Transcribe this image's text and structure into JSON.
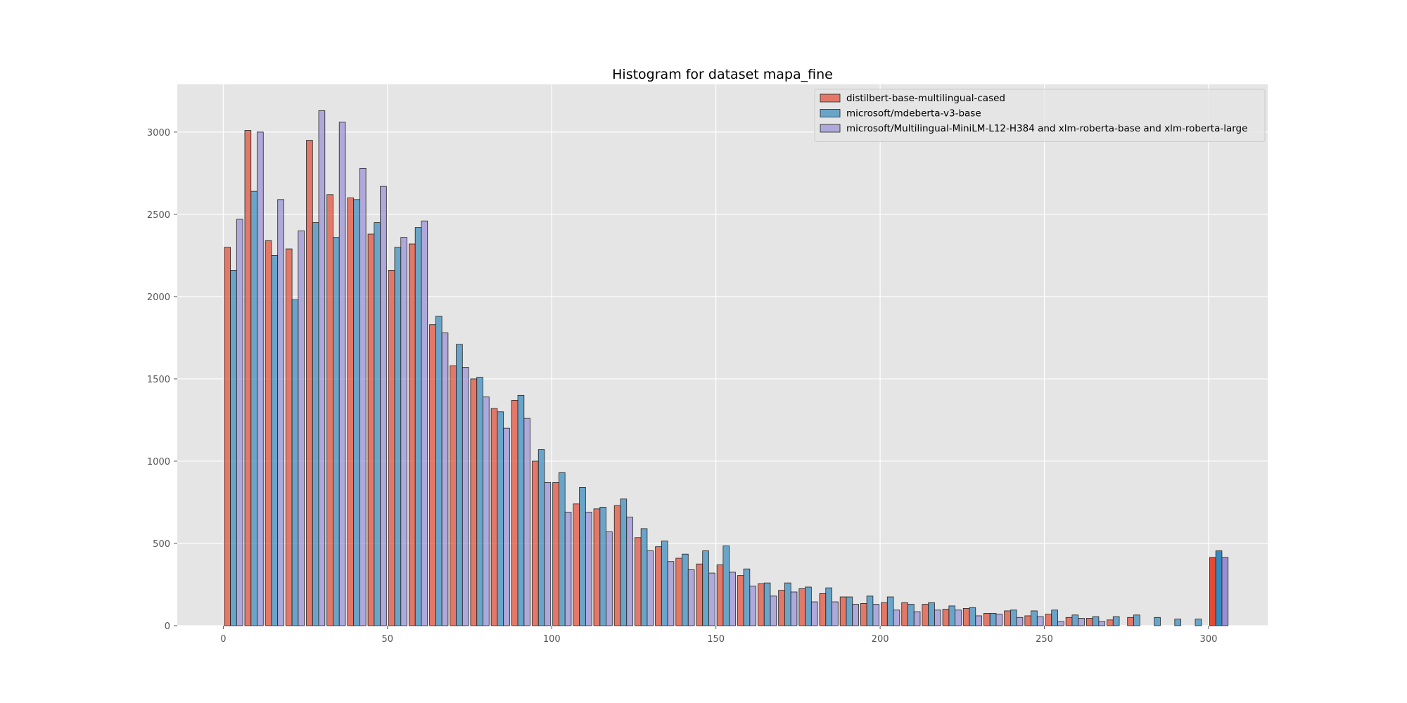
{
  "chart_data": {
    "type": "bar",
    "title": "Histogram for dataset mapa_fine",
    "xlabel": "",
    "ylabel": "",
    "xlim": [
      -14,
      318
    ],
    "ylim": [
      0,
      3290
    ],
    "xticks": [
      0,
      50,
      100,
      150,
      200,
      250,
      300
    ],
    "yticks": [
      0,
      500,
      1000,
      1500,
      2000,
      2500,
      3000
    ],
    "grid": true,
    "legend_position": "top-right",
    "bin_width": 6.25,
    "bin_starts": [
      0,
      6.25,
      12.5,
      18.75,
      25,
      31.25,
      37.5,
      43.75,
      50,
      56.25,
      62.5,
      68.75,
      75,
      81.25,
      87.5,
      93.75,
      100,
      106.25,
      112.5,
      118.75,
      125,
      131.25,
      137.5,
      143.75,
      150,
      156.25,
      162.5,
      168.75,
      175,
      181.25,
      187.5,
      193.75,
      200,
      206.25,
      212.5,
      218.75,
      225,
      231.25,
      237.5,
      243.75,
      250,
      256.25,
      262.5,
      268.75,
      275,
      281.25,
      287.5,
      293.75,
      300
    ],
    "series": [
      {
        "name": "distilbert-base-multilingual-cased",
        "color": "#E24A33",
        "values": [
          2300,
          3010,
          2340,
          2290,
          2950,
          2620,
          2600,
          2380,
          2160,
          2320,
          1830,
          1580,
          1500,
          1320,
          1370,
          1000,
          870,
          740,
          710,
          730,
          535,
          480,
          410,
          375,
          370,
          305,
          255,
          215,
          225,
          195,
          175,
          135,
          140,
          140,
          130,
          100,
          105,
          75,
          90,
          60,
          70,
          50,
          45,
          35,
          50,
          0,
          0,
          0,
          415
        ]
      },
      {
        "name": "microsoft/mdeberta-v3-base",
        "color": "#348ABD",
        "values": [
          2160,
          2640,
          2250,
          1980,
          2450,
          2360,
          2590,
          2450,
          2300,
          2420,
          1880,
          1710,
          1510,
          1300,
          1400,
          1070,
          930,
          840,
          720,
          770,
          590,
          515,
          435,
          455,
          485,
          345,
          260,
          260,
          235,
          230,
          175,
          180,
          175,
          130,
          140,
          120,
          110,
          75,
          95,
          90,
          95,
          65,
          55,
          55,
          65,
          50,
          40,
          40,
          455
        ]
      },
      {
        "name": "microsoft/Multilingual-MiniLM-L12-H384 and xlm-roberta-base and xlm-roberta-large",
        "color": "#988ED5",
        "values": [
          2470,
          3000,
          2590,
          2400,
          3130,
          3060,
          2780,
          2670,
          2360,
          2460,
          1780,
          1570,
          1390,
          1200,
          1260,
          870,
          690,
          690,
          570,
          660,
          455,
          390,
          340,
          320,
          325,
          240,
          180,
          205,
          145,
          145,
          130,
          130,
          95,
          85,
          95,
          95,
          60,
          70,
          50,
          55,
          25,
          45,
          25,
          0,
          0,
          0,
          0,
          0,
          415
        ]
      }
    ]
  }
}
